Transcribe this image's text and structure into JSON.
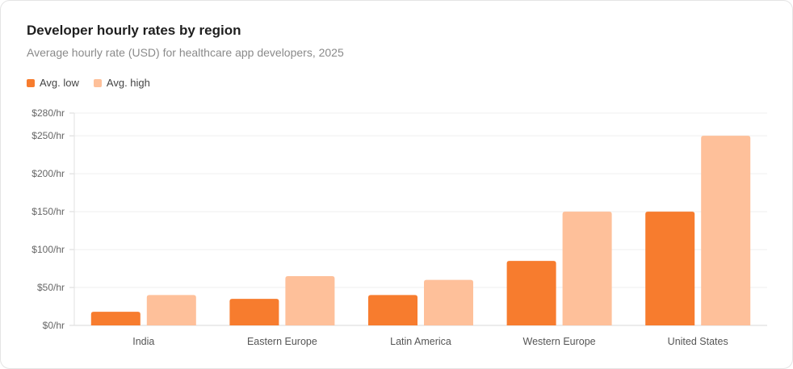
{
  "chart_data": {
    "type": "bar",
    "title": "Developer hourly rates by region",
    "subtitle": "Average hourly rate (USD) for healthcare app developers, 2025",
    "categories": [
      "India",
      "Eastern Europe",
      "Latin America",
      "Western Europe",
      "United States"
    ],
    "series": [
      {
        "name": "Avg. low",
        "color": "#f77c2e",
        "values": [
          18,
          35,
          40,
          85,
          150
        ]
      },
      {
        "name": "Avg. high",
        "color": "#fec09a",
        "values": [
          40,
          65,
          60,
          150,
          250
        ]
      }
    ],
    "ylim": [
      0,
      280
    ],
    "yticks": [
      0,
      50,
      100,
      150,
      200,
      250,
      280
    ],
    "ytick_labels": [
      "$0/hr",
      "$50/hr",
      "$100/hr",
      "$150/hr",
      "$200/hr",
      "$250/hr",
      "$280/hr"
    ],
    "grid": true,
    "legend": "top-left"
  }
}
